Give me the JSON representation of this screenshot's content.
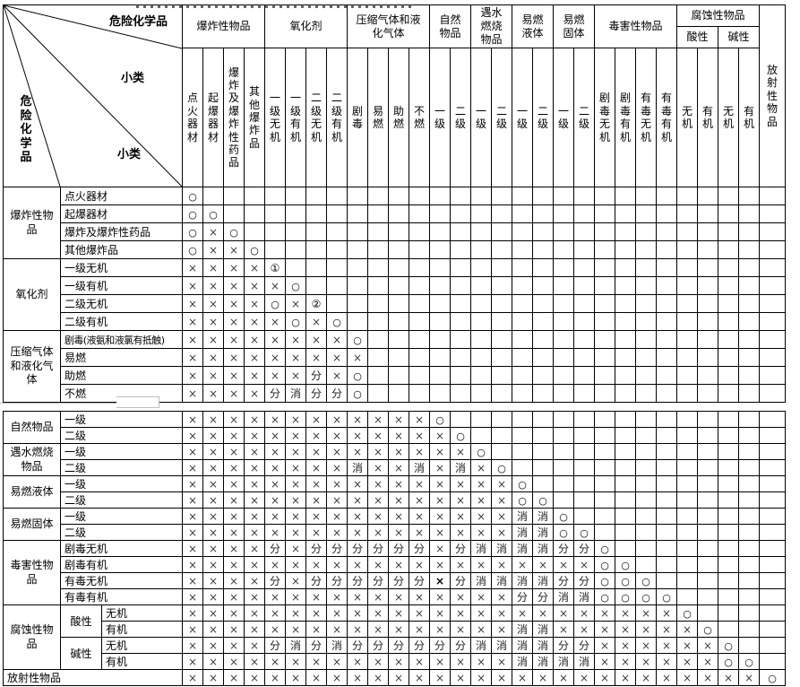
{
  "corner": {
    "axis_col": "危险化学品",
    "subclass_col": "小类",
    "axis_row": "危险化学品",
    "subclass_row": "小类"
  },
  "col_groups": [
    {
      "label": "爆炸性物品",
      "subs": [
        "点火器材",
        "起爆器材",
        "爆炸及爆炸性药品",
        "其他爆炸品"
      ]
    },
    {
      "label": "氧化剂",
      "subs": [
        "一级无机",
        "一级有机",
        "二级无机",
        "二级有机"
      ]
    },
    {
      "label": "压缩气体和液化气体",
      "subs": [
        "剧毒",
        "易燃",
        "助燃",
        "不燃"
      ]
    },
    {
      "label": "自然物品",
      "subs": [
        "一级",
        "二级"
      ]
    },
    {
      "label": "遇水燃烧物品",
      "subs": [
        "一级",
        "二级"
      ]
    },
    {
      "label": "易燃液体",
      "subs": [
        "一级",
        "二级"
      ]
    },
    {
      "label": "易燃固体",
      "subs": [
        "一级",
        "二级"
      ]
    },
    {
      "label": "毒害性物品",
      "subs": [
        "剧毒无机",
        "剧毒有机",
        "有毒无机",
        "有毒有机"
      ]
    },
    {
      "label": "腐蚀性物品",
      "children": [
        {
          "label": "酸性",
          "subs": [
            "无机",
            "有机"
          ]
        },
        {
          "label": "碱性",
          "subs": [
            "无机",
            "有机"
          ]
        }
      ]
    },
    {
      "label": "放射性物品",
      "vertical_merged": true
    }
  ],
  "row_groups": [
    {
      "part": 1,
      "group": "爆炸性物品",
      "rows": [
        {
          "label": "点火器材",
          "cells": [
            "○"
          ]
        },
        {
          "label": "起爆器材",
          "cells": [
            "○",
            "○"
          ]
        },
        {
          "label": "爆炸及爆炸性药品",
          "cells": [
            "○",
            "×",
            "○"
          ]
        },
        {
          "label": "其他爆炸品",
          "cells": [
            "○",
            "×",
            "×",
            "○"
          ]
        }
      ]
    },
    {
      "part": 1,
      "group": "氧化剂",
      "rows": [
        {
          "label": "一级无机",
          "cells": [
            "×",
            "×",
            "×",
            "×",
            "①"
          ]
        },
        {
          "label": "一级有机",
          "cells": [
            "×",
            "×",
            "×",
            "×",
            "×",
            "○"
          ]
        },
        {
          "label": "二级无机",
          "cells": [
            "×",
            "×",
            "×",
            "×",
            "○",
            "×",
            "②"
          ]
        },
        {
          "label": "二级有机",
          "cells": [
            "×",
            "×",
            "×",
            "×",
            "×",
            "○",
            "×",
            "○"
          ]
        }
      ]
    },
    {
      "part": 1,
      "group": "压缩气体和液化气体",
      "rows": [
        {
          "label": "剧毒(液氨和液氯有抵触)",
          "cells": [
            "×",
            "×",
            "×",
            "×",
            "×",
            "×",
            "×",
            "×",
            "○"
          ]
        },
        {
          "label": "易燃",
          "cells": [
            "×",
            "×",
            "×",
            "×",
            "×",
            "×",
            "×",
            "×",
            "×"
          ]
        },
        {
          "label": "助燃",
          "cells": [
            "×",
            "×",
            "×",
            "×",
            "×",
            "×",
            "分",
            "×",
            "○"
          ]
        },
        {
          "label": "不燃",
          "cells": [
            "×",
            "×",
            "×",
            "×",
            "分",
            "消",
            "分",
            "分",
            "○"
          ]
        }
      ]
    },
    {
      "part": 2,
      "group": "自然物品",
      "rows": [
        {
          "label": "一级",
          "cells": [
            "×",
            "×",
            "×",
            "×",
            "×",
            "×",
            "×",
            "×",
            "×",
            "×",
            "×",
            "×",
            "○"
          ]
        },
        {
          "label": "二级",
          "cells": [
            "×",
            "×",
            "×",
            "×",
            "×",
            "×",
            "×",
            "×",
            "×",
            "×",
            "×",
            "×",
            "×",
            "○"
          ]
        }
      ]
    },
    {
      "part": 2,
      "group": "遇水燃烧物品",
      "rows": [
        {
          "label": "一级",
          "cells": [
            "×",
            "×",
            "×",
            "×",
            "×",
            "×",
            "×",
            "×",
            "×",
            "×",
            "×",
            "×",
            "×",
            "×",
            "○"
          ]
        },
        {
          "label": "二级",
          "cells": [
            "×",
            "×",
            "×",
            "×",
            "×",
            "×",
            "×",
            "×",
            "消",
            "×",
            "×",
            "消",
            "×",
            "消",
            "×",
            "○"
          ]
        }
      ]
    },
    {
      "part": 2,
      "group": "易燃液体",
      "rows": [
        {
          "label": "一级",
          "cells": [
            "×",
            "×",
            "×",
            "×",
            "×",
            "×",
            "×",
            "×",
            "×",
            "×",
            "×",
            "×",
            "×",
            "×",
            "×",
            "×",
            "○"
          ]
        },
        {
          "label": "二级",
          "cells": [
            "×",
            "×",
            "×",
            "×",
            "×",
            "×",
            "×",
            "×",
            "×",
            "×",
            "×",
            "×",
            "×",
            "×",
            "×",
            "×",
            "○",
            "○"
          ]
        }
      ]
    },
    {
      "part": 2,
      "group": "易燃固体",
      "rows": [
        {
          "label": "一级",
          "cells": [
            "×",
            "×",
            "×",
            "×",
            "×",
            "×",
            "×",
            "×",
            "×",
            "×",
            "×",
            "×",
            "×",
            "×",
            "×",
            "×",
            "消",
            "消",
            "○"
          ]
        },
        {
          "label": "二级",
          "cells": [
            "×",
            "×",
            "×",
            "×",
            "×",
            "×",
            "×",
            "×",
            "×",
            "×",
            "×",
            "×",
            "×",
            "×",
            "×",
            "×",
            "消",
            "消",
            "○",
            "○"
          ]
        }
      ]
    },
    {
      "part": 2,
      "group": "毒害性物品",
      "rows": [
        {
          "label": "剧毒无机",
          "cells": [
            "×",
            "×",
            "×",
            "×",
            "分",
            "×",
            "分",
            "分",
            "分",
            "分",
            "分",
            "分",
            "×",
            "分",
            "消",
            "消",
            "消",
            "消",
            "分",
            "分",
            "○"
          ]
        },
        {
          "label": "剧毒有机",
          "cells": [
            "×",
            "×",
            "×",
            "×",
            "×",
            "×",
            "×",
            "×",
            "×",
            "×",
            "×",
            "×",
            "×",
            "×",
            "×",
            "×",
            "×",
            "×",
            "×",
            "×",
            "○",
            "○"
          ]
        },
        {
          "label": "有毒无机",
          "cells": [
            "×",
            "×",
            "×",
            "×",
            "分",
            "×",
            "分",
            "分",
            "分",
            "分",
            "分",
            "分",
            "×*",
            "分",
            "消",
            "消",
            "消",
            "消",
            "分",
            "分",
            "○",
            "○",
            "○"
          ]
        },
        {
          "label": "有毒有机",
          "cells": [
            "×",
            "×",
            "×",
            "×",
            "×",
            "×",
            "×",
            "×",
            "×",
            "×",
            "×",
            "×",
            "×",
            "×",
            "×",
            "×",
            "分",
            "分",
            "消",
            "消",
            "○",
            "○",
            "○",
            "○"
          ]
        }
      ]
    },
    {
      "part": 2,
      "group": "腐蚀性物品",
      "children": [
        {
          "label": "酸性",
          "rows": [
            {
              "label": "无机",
              "cells": [
                "×",
                "×",
                "×",
                "×",
                "×",
                "×",
                "×",
                "×",
                "×",
                "×",
                "×",
                "×",
                "×",
                "×",
                "×",
                "×",
                "×",
                "×",
                "×",
                "×",
                "×",
                "×",
                "×",
                "×",
                "○"
              ]
            },
            {
              "label": "有机",
              "cells": [
                "×",
                "×",
                "×",
                "×",
                "×",
                "×",
                "×",
                "×",
                "×",
                "×",
                "×",
                "×",
                "×",
                "×",
                "×",
                "×",
                "消",
                "消",
                "×",
                "×",
                "×",
                "×",
                "×",
                "×",
                "×",
                "○"
              ]
            }
          ]
        },
        {
          "label": "碱性",
          "rows": [
            {
              "label": "无机",
              "cells": [
                "×",
                "×",
                "×",
                "×",
                "分",
                "消",
                "分",
                "消",
                "分",
                "分",
                "分",
                "分",
                "分",
                "分",
                "消",
                "消",
                "消",
                "消",
                "分",
                "分",
                "×",
                "×",
                "×",
                "×",
                "×",
                "×",
                "○"
              ]
            },
            {
              "label": "有机",
              "cells": [
                "×",
                "×",
                "×",
                "×",
                "×",
                "×",
                "×",
                "×",
                "×",
                "×",
                "×",
                "×",
                "×",
                "×",
                "×",
                "×",
                "消",
                "消",
                "消",
                "消",
                "×",
                "×",
                "×",
                "×",
                "×",
                "×",
                "○",
                "○"
              ]
            }
          ]
        }
      ]
    },
    {
      "part": 2,
      "group": "放射性物品",
      "full_row": {
        "cells": [
          "×",
          "×",
          "×",
          "×",
          "×",
          "×",
          "×",
          "×",
          "×",
          "×",
          "×",
          "×",
          "×",
          "×",
          "×",
          "×",
          "×",
          "×",
          "×",
          "×",
          "×",
          "×",
          "×",
          "×",
          "×",
          "×",
          "×",
          "×",
          "○"
        ]
      }
    }
  ],
  "symbols_seen": [
    "○",
    "×",
    "分",
    "消",
    "①",
    "②"
  ],
  "colors": {
    "border": "#000000",
    "text": "#000000",
    "x_mark": "#3d3d3d",
    "artifact_gray": "#bdbdbd"
  }
}
